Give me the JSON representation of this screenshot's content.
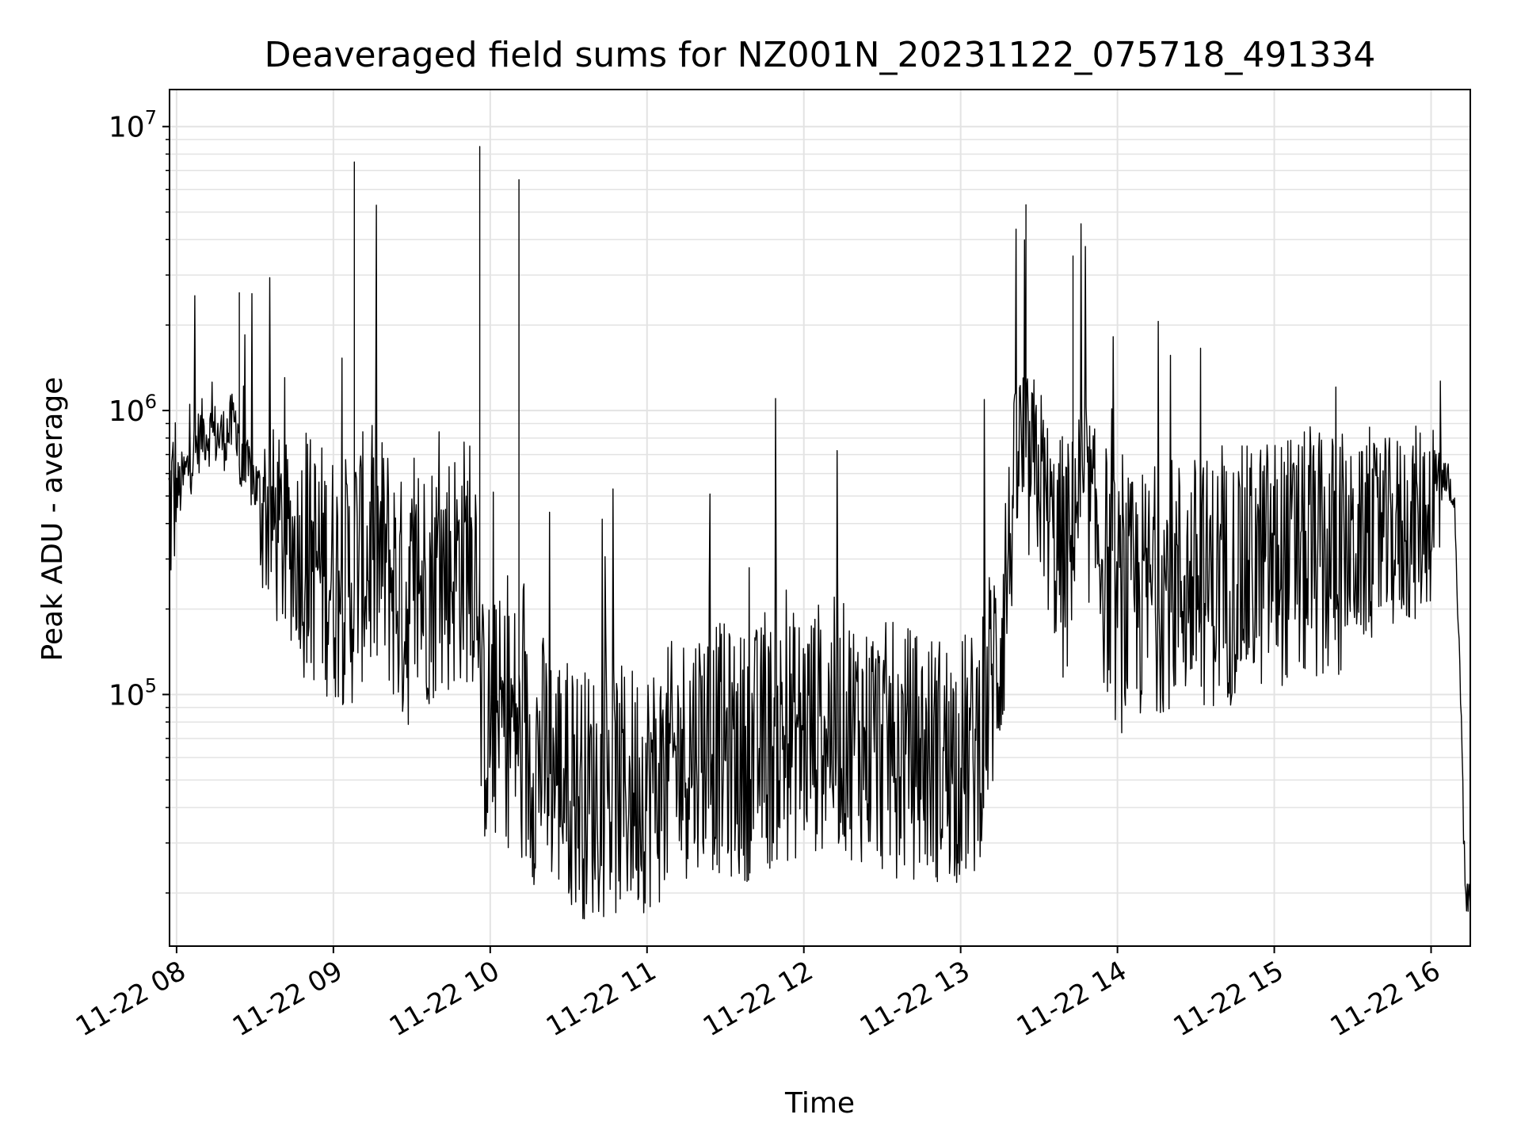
{
  "chart_data": {
    "type": "line",
    "title": "Deaveraged field sums for NZ001N_20231122_075718_491334",
    "xlabel": "Time",
    "ylabel": "Peak ADU - average",
    "yscale": "log",
    "ylim": [
      13000,
      13500000
    ],
    "xlim": [
      "2023-11-22 07:57:18",
      "2023-11-22 16:15:00"
    ],
    "x_ticks": [
      "11-22 08",
      "11-22 09",
      "11-22 10",
      "11-22 11",
      "11-22 12",
      "11-22 13",
      "11-22 14",
      "11-22 15",
      "11-22 16"
    ],
    "y_ticks": [
      {
        "base": "10",
        "exp": "5",
        "value": 100000
      },
      {
        "base": "10",
        "exp": "6",
        "value": 1000000
      },
      {
        "base": "10",
        "exp": "7",
        "value": 10000000
      }
    ],
    "grid": true,
    "line_color": "#000000",
    "series": [
      {
        "x": [
          "2023-11-22 07:57",
          "2023-11-22 08:02",
          "2023-11-22 08:10",
          "2023-11-22 08:18",
          "2023-11-22 08:22",
          "2023-11-22 08:24",
          "2023-11-22 08:28",
          "2023-11-22 08:40",
          "2023-11-22 08:52",
          "2023-11-22 09:03",
          "2023-11-22 09:08",
          "2023-11-22 09:20",
          "2023-11-22 09:27",
          "2023-11-22 09:35",
          "2023-11-22 09:50",
          "2023-11-22 09:56",
          "2023-11-22 10:05",
          "2023-11-22 10:11",
          "2023-11-22 10:20",
          "2023-11-22 10:36",
          "2023-11-22 10:50",
          "2023-11-22 11:05",
          "2023-11-22 11:20",
          "2023-11-22 11:35",
          "2023-11-22 11:53",
          "2023-11-22 12:10",
          "2023-11-22 12:30",
          "2023-11-22 12:50",
          "2023-11-22 13:05",
          "2023-11-22 13:15",
          "2023-11-22 13:22",
          "2023-11-22 13:25",
          "2023-11-22 13:30",
          "2023-11-22 13:37",
          "2023-11-22 13:43",
          "2023-11-22 13:48",
          "2023-11-22 14:00",
          "2023-11-22 14:20",
          "2023-11-22 14:40",
          "2023-11-22 15:00",
          "2023-11-22 15:20",
          "2023-11-22 15:40",
          "2023-11-22 15:55",
          "2023-11-22 16:03",
          "2023-11-22 16:06",
          "2023-11-22 16:09",
          "2023-11-22 16:11",
          "2023-11-22 16:13",
          "2023-11-22 16:15"
        ],
        "y": [
          450000,
          550000,
          850000,
          800000,
          900000,
          2600000,
          600000,
          350000,
          300000,
          250000,
          7500000,
          300000,
          200000,
          250000,
          300000,
          8500000,
          80000,
          6500000,
          60000,
          45000,
          45000,
          50000,
          70000,
          60000,
          70000,
          80000,
          65000,
          60000,
          60000,
          150000,
          700000,
          5300000,
          600000,
          300000,
          3500000,
          500000,
          200000,
          250000,
          250000,
          300000,
          300000,
          350000,
          400000,
          500000,
          600000,
          500000,
          120000,
          20000,
          18000
        ]
      }
    ]
  }
}
